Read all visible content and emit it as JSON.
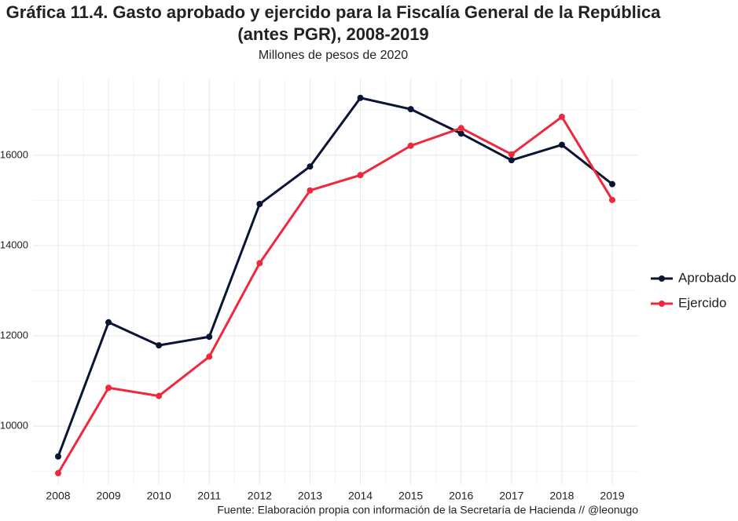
{
  "chart_data": {
    "type": "line",
    "title": "Gráfica 11.4. Gasto aprobado y ejercido para la Fiscalía General de la República",
    "title_line2": "(antes PGR), 2008-2019",
    "subtitle": "Millones de pesos de 2020",
    "caption": "Fuente: Elaboración propia con información de la Secretaría de Hacienda // @leonugo",
    "categories": [
      "2008",
      "2009",
      "2010",
      "2011",
      "2012",
      "2013",
      "2014",
      "2015",
      "2016",
      "2017",
      "2018",
      "2019"
    ],
    "series": [
      {
        "name": "Aprobado",
        "color": "#0a1533",
        "values": [
          9330,
          12300,
          11790,
          11980,
          14920,
          15750,
          17270,
          17020,
          16480,
          15890,
          16230,
          15360
        ]
      },
      {
        "name": "Ejercido",
        "color": "#f0283c",
        "values": [
          8960,
          10850,
          10670,
          11540,
          13610,
          15220,
          15560,
          16210,
          16600,
          16020,
          16850,
          15010
        ]
      }
    ],
    "ylim": [
      8700,
      17700
    ],
    "yticks": [
      10000,
      12000,
      14000,
      16000
    ],
    "grid": true,
    "legend": "right"
  }
}
